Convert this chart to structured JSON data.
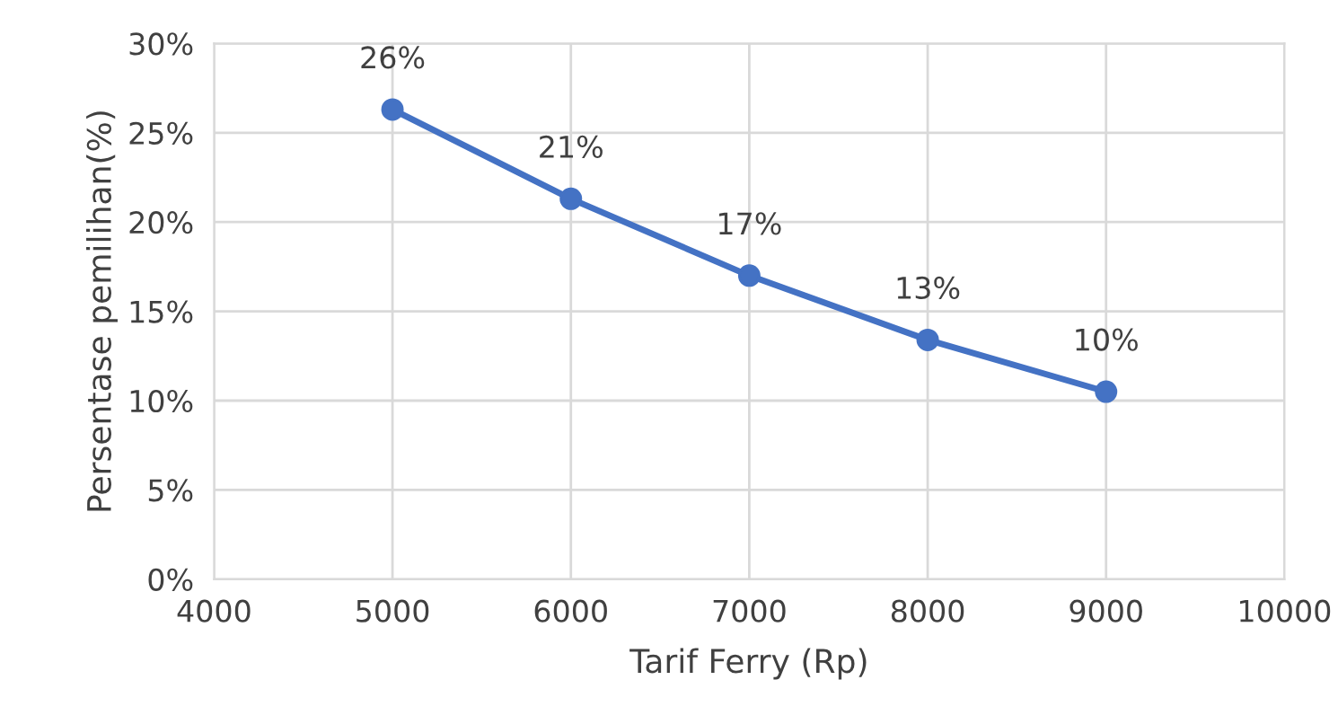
{
  "chart_data": {
    "type": "line",
    "xlabel": "Tarif Ferry (Rp)",
    "ylabel": "Persentase pemilihan(%)",
    "x": [
      5000,
      6000,
      7000,
      8000,
      9000
    ],
    "series": [
      {
        "color": "#4472c4",
        "values": [
          26.3,
          21.3,
          17.0,
          13.4,
          10.5
        ],
        "value_labels": [
          "26%",
          "21%",
          "17%",
          "13%",
          "10%"
        ]
      }
    ],
    "xlim": [
      4000,
      10000
    ],
    "xticks": [
      4000,
      5000,
      6000,
      7000,
      8000,
      9000,
      10000
    ],
    "ylim": [
      0,
      30
    ],
    "yticks": [
      {
        "value": 0,
        "label": "0%"
      },
      {
        "value": 5,
        "label": "5%"
      },
      {
        "value": 10,
        "label": "10%"
      },
      {
        "value": 15,
        "label": "15%"
      },
      {
        "value": 20,
        "label": "20%"
      },
      {
        "value": 25,
        "label": "25%"
      },
      {
        "value": 30,
        "label": "30%"
      }
    ],
    "grid": true,
    "marker": "circle",
    "line_style": "solid",
    "legend": false
  }
}
